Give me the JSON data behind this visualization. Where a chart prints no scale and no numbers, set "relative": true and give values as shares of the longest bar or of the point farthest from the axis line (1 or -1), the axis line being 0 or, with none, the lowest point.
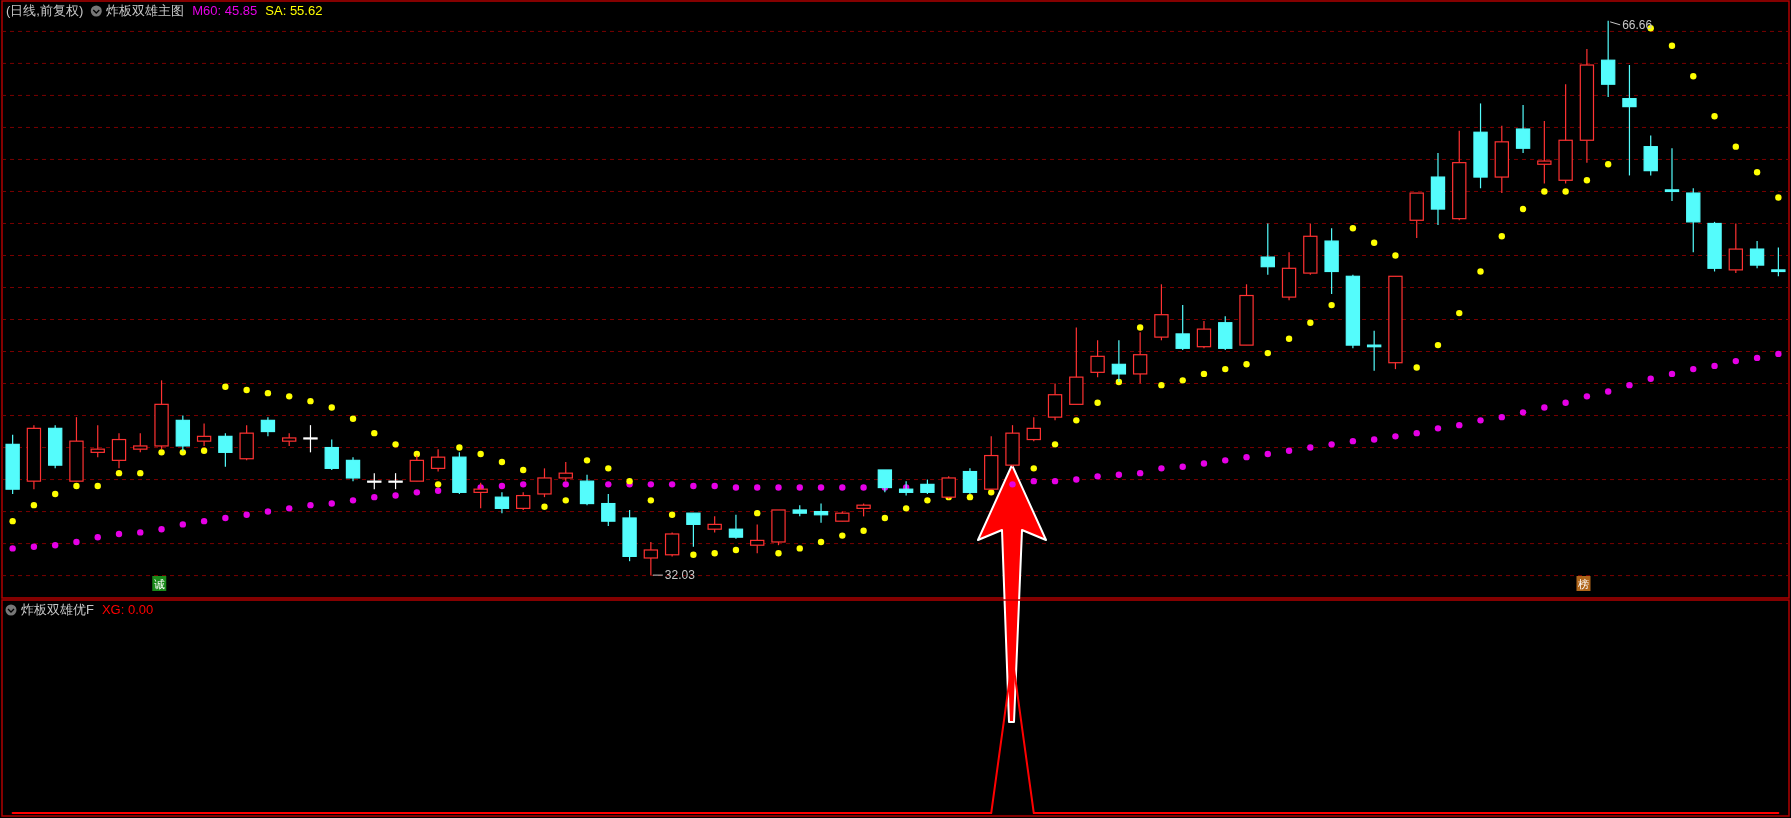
{
  "chart_data": [
    {
      "type": "candlestick",
      "title": "炸板双雄主图",
      "subtitle": "(日线,前复权)",
      "grid": "y",
      "categories": [
        null,
        null,
        null,
        null,
        null,
        null,
        null,
        null,
        null,
        null,
        null,
        null,
        null,
        null,
        null,
        null,
        null,
        null,
        null,
        null,
        null,
        null,
        null,
        null,
        null,
        null,
        null,
        null,
        null,
        null,
        null,
        null,
        null,
        null,
        null,
        null,
        null,
        null,
        null,
        null,
        null,
        null,
        null,
        null,
        null,
        null,
        null,
        null,
        null,
        null,
        null,
        null,
        null,
        null,
        null,
        null,
        null,
        null,
        null,
        null,
        null,
        null,
        null,
        null,
        null,
        null,
        null,
        null,
        null,
        null,
        null,
        null,
        null,
        null,
        null,
        null,
        null,
        null,
        null,
        null,
        null,
        null,
        null,
        null
      ],
      "ohlc": [
        [
          40.2,
          40.8,
          37.1,
          37.4
        ],
        [
          37.9,
          41.4,
          37.4,
          41.2
        ],
        [
          41.2,
          41.4,
          38.7,
          38.9
        ],
        [
          37.9,
          41.9,
          37.9,
          40.4
        ],
        [
          39.7,
          41.4,
          39.4,
          39.9
        ],
        [
          39.2,
          40.9,
          38.7,
          40.5
        ],
        [
          39.9,
          40.9,
          39.7,
          40.1
        ],
        [
          40.1,
          44.2,
          39.9,
          42.7
        ],
        [
          41.7,
          42.0,
          39.8,
          40.1
        ],
        [
          40.4,
          41.5,
          40.1,
          40.7
        ],
        [
          40.7,
          40.9,
          38.8,
          39.7
        ],
        [
          39.3,
          41.4,
          39.2,
          40.9
        ],
        [
          41.7,
          41.9,
          40.7,
          41.0
        ],
        [
          40.4,
          40.9,
          40.1,
          40.6
        ],
        [
          40.6,
          41.4,
          39.7,
          40.6
        ],
        [
          40.0,
          40.5,
          38.6,
          38.7
        ],
        [
          39.2,
          39.4,
          37.9,
          38.1
        ],
        [
          37.9,
          38.4,
          37.4,
          37.9
        ],
        [
          37.9,
          38.4,
          37.4,
          37.9
        ],
        [
          37.9,
          39.5,
          37.9,
          39.2
        ],
        [
          38.7,
          39.9,
          38.5,
          39.4
        ],
        [
          39.4,
          39.7,
          37.1,
          37.2
        ],
        [
          37.2,
          37.8,
          36.2,
          37.4
        ],
        [
          36.9,
          37.2,
          35.9,
          36.2
        ],
        [
          36.2,
          37.2,
          36.1,
          37.0
        ],
        [
          37.1,
          38.7,
          36.9,
          38.1
        ],
        [
          38.1,
          39.1,
          37.9,
          38.4
        ],
        [
          37.9,
          38.3,
          36.4,
          36.5
        ],
        [
          36.5,
          37.1,
          35.1,
          35.4
        ],
        [
          35.6,
          36.1,
          32.9,
          33.2
        ],
        [
          33.1,
          34.1,
          32.03,
          33.6
        ],
        [
          33.3,
          34.7,
          33.2,
          34.6
        ],
        [
          35.9,
          35.9,
          33.8,
          35.2
        ],
        [
          34.9,
          35.7,
          34.7,
          35.2
        ],
        [
          34.9,
          35.8,
          34.3,
          34.4
        ],
        [
          33.9,
          35.2,
          33.4,
          34.2
        ],
        [
          34.1,
          36.1,
          33.9,
          36.1
        ],
        [
          36.1,
          36.4,
          35.7,
          35.9
        ],
        [
          36.0,
          36.5,
          35.3,
          35.8
        ],
        [
          35.4,
          36.0,
          35.4,
          35.9
        ],
        [
          36.2,
          36.5,
          35.7,
          36.4
        ],
        [
          38.6,
          38.6,
          37.2,
          37.5
        ],
        [
          37.4,
          37.9,
          37.0,
          37.2
        ],
        [
          37.7,
          38.0,
          37.1,
          37.2
        ],
        [
          36.9,
          38.2,
          36.8,
          38.1
        ],
        [
          38.5,
          38.7,
          37.1,
          37.2
        ],
        [
          37.4,
          40.7,
          37.4,
          39.5
        ],
        [
          38.9,
          41.4,
          38.8,
          40.9
        ],
        [
          40.5,
          41.9,
          40.4,
          41.2
        ],
        [
          41.9,
          44.0,
          41.7,
          43.3
        ],
        [
          42.7,
          47.5,
          42.7,
          44.4
        ],
        [
          44.7,
          46.7,
          44.4,
          45.7
        ],
        [
          45.2,
          46.7,
          44.1,
          44.6
        ],
        [
          44.6,
          47.2,
          44.0,
          45.8
        ],
        [
          46.9,
          50.2,
          46.7,
          48.3
        ],
        [
          47.1,
          48.9,
          46.1,
          46.2
        ],
        [
          46.3,
          47.9,
          46.2,
          47.4
        ],
        [
          47.8,
          48.2,
          46.1,
          46.2
        ],
        [
          46.4,
          50.2,
          46.4,
          49.5
        ],
        [
          51.9,
          54.0,
          50.8,
          51.3
        ],
        [
          49.4,
          52.2,
          49.2,
          51.2
        ],
        [
          50.9,
          54.0,
          50.8,
          53.2
        ],
        [
          52.9,
          53.7,
          49.6,
          51.0
        ],
        [
          50.7,
          50.8,
          46.2,
          46.4
        ],
        [
          46.4,
          47.3,
          44.8,
          46.3
        ],
        [
          45.3,
          50.7,
          44.9,
          50.7
        ],
        [
          54.2,
          55.9,
          53.1,
          55.9
        ],
        [
          56.9,
          58.4,
          53.9,
          54.9
        ],
        [
          54.3,
          59.8,
          54.2,
          57.8
        ],
        [
          59.7,
          61.5,
          56.2,
          56.9
        ],
        [
          56.9,
          60.1,
          55.9,
          59.1
        ],
        [
          59.9,
          61.4,
          58.4,
          58.7
        ],
        [
          57.7,
          60.4,
          56.5,
          57.9
        ],
        [
          56.7,
          62.7,
          56.5,
          59.2
        ],
        [
          59.2,
          64.9,
          57.8,
          63.9
        ],
        [
          64.2,
          66.66,
          61.9,
          62.7
        ],
        [
          61.8,
          63.9,
          57.0,
          61.3
        ],
        [
          58.8,
          59.5,
          57.0,
          57.3
        ],
        [
          56.1,
          58.7,
          55.4,
          56.0
        ],
        [
          55.9,
          56.2,
          52.2,
          54.1
        ],
        [
          54.0,
          54.1,
          51.0,
          51.2
        ],
        [
          51.1,
          54.0,
          50.9,
          52.4
        ],
        [
          52.4,
          52.9,
          51.2,
          51.4
        ],
        [
          51.1,
          52.5,
          50.7,
          51.0
        ]
      ],
      "series": [
        {
          "name": "M60: 45.85",
          "type": "scatter",
          "color": "#e600e6",
          "values": [
            33.7,
            33.8,
            33.9,
            34.1,
            34.4,
            34.6,
            34.7,
            34.9,
            35.2,
            35.4,
            35.6,
            35.8,
            36.0,
            36.2,
            36.4,
            36.5,
            36.7,
            36.9,
            37.0,
            37.2,
            37.3,
            null,
            37.5,
            37.6,
            37.7,
            null,
            37.7,
            null,
            37.7,
            37.7,
            37.7,
            37.7,
            37.6,
            37.6,
            37.5,
            37.5,
            37.5,
            37.5,
            37.5,
            37.5,
            37.5,
            37.5,
            37.5,
            null,
            null,
            null,
            null,
            37.7,
            37.9,
            37.9,
            38.0,
            38.2,
            38.3,
            38.4,
            38.7,
            38.8,
            39.0,
            39.2,
            39.4,
            39.6,
            39.8,
            40.0,
            40.2,
            40.4,
            40.5,
            40.7,
            40.9,
            41.2,
            41.4,
            41.7,
            41.9,
            42.2,
            42.5,
            42.8,
            43.2,
            43.5,
            43.9,
            44.3,
            44.6,
            44.9,
            45.1,
            45.4,
            45.6,
            45.85
          ]
        },
        {
          "name": "SA: 55.62",
          "type": "scatter",
          "color": "#ffff00",
          "values": [
            35.4,
            36.4,
            37.1,
            37.6,
            37.6,
            38.4,
            38.4,
            39.7,
            39.7,
            39.8,
            43.8,
            43.6,
            43.4,
            43.2,
            42.9,
            42.5,
            41.8,
            40.9,
            40.2,
            39.6,
            37.7,
            40.0,
            39.6,
            39.1,
            38.6,
            36.3,
            36.7,
            39.2,
            38.7,
            37.9,
            36.7,
            35.8,
            33.3,
            33.4,
            33.6,
            35.9,
            33.4,
            33.7,
            34.1,
            34.5,
            34.8,
            35.6,
            36.2,
            36.7,
            36.9,
            36.9,
            37.2,
            null,
            38.7,
            40.2,
            41.7,
            42.8,
            44.1,
            47.5,
            43.9,
            44.2,
            44.6,
            44.9,
            45.2,
            45.9,
            46.8,
            47.8,
            48.9,
            53.7,
            52.8,
            52.0,
            45.0,
            46.4,
            48.4,
            51.0,
            53.2,
            54.9,
            56.0,
            56.0,
            56.7,
            57.7,
            null,
            66.2,
            65.1,
            63.2,
            60.7,
            58.8,
            57.2,
            55.62
          ]
        }
      ],
      "ylim": [
        30.6,
        67.9
      ],
      "yticks": [
        {
          "value": 32,
          "label": null
        },
        {
          "value": 34,
          "label": null
        },
        {
          "value": 36,
          "label": null
        },
        {
          "value": 38,
          "label": null
        },
        {
          "value": 40,
          "label": null
        },
        {
          "value": 42,
          "label": null
        },
        {
          "value": 44,
          "label": null
        },
        {
          "value": 46,
          "label": null
        },
        {
          "value": 48,
          "label": null
        },
        {
          "value": 50,
          "label": null
        },
        {
          "value": 52,
          "label": null
        },
        {
          "value": 54,
          "label": null
        },
        {
          "value": 56,
          "label": null
        },
        {
          "value": 58,
          "label": null
        },
        {
          "value": 60,
          "label": null
        },
        {
          "value": 62,
          "label": null
        },
        {
          "value": 64,
          "label": null
        },
        {
          "value": 66,
          "label": null
        }
      ],
      "annotations": [
        "66.66",
        "32.03",
        "诚",
        "榜"
      ]
    },
    {
      "type": "line",
      "title": "炸板双雄优F",
      "relative": true,
      "categories": [
        null,
        null,
        null,
        null,
        null,
        null,
        null,
        null,
        null,
        null,
        null,
        null,
        null,
        null,
        null,
        null,
        null,
        null,
        null,
        null,
        null,
        null,
        null,
        null,
        null,
        null,
        null,
        null,
        null,
        null,
        null,
        null,
        null,
        null,
        null,
        null,
        null,
        null,
        null,
        null,
        null,
        null,
        null,
        null,
        null,
        null,
        null,
        null,
        null,
        null,
        null,
        null,
        null,
        null,
        null,
        null,
        null,
        null,
        null,
        null,
        null,
        null,
        null,
        null,
        null,
        null,
        null,
        null,
        null,
        null,
        null,
        null,
        null,
        null,
        null,
        null,
        null,
        null,
        null,
        null,
        null,
        null,
        null,
        null
      ],
      "series": [
        {
          "name": "XG: 0.00",
          "color": "#ff0000",
          "values": [
            0,
            0,
            0,
            0,
            0,
            0,
            0,
            0,
            0,
            0,
            0,
            0,
            0,
            0,
            0,
            0,
            0,
            0,
            0,
            0,
            0,
            0,
            0,
            0,
            0,
            0,
            0,
            0,
            0,
            0,
            0,
            0,
            0,
            0,
            0,
            0,
            0,
            0,
            0,
            0,
            0,
            0,
            0,
            0,
            0,
            0,
            0,
            1,
            0,
            0,
            0,
            0,
            0,
            0,
            0,
            0,
            0,
            0,
            0,
            0,
            0,
            0,
            0,
            0,
            0,
            0,
            0,
            0,
            0,
            0,
            0,
            0,
            0,
            0,
            0,
            0,
            0,
            0,
            0,
            0,
            0,
            0,
            0,
            0
          ]
        }
      ]
    }
  ]
}
